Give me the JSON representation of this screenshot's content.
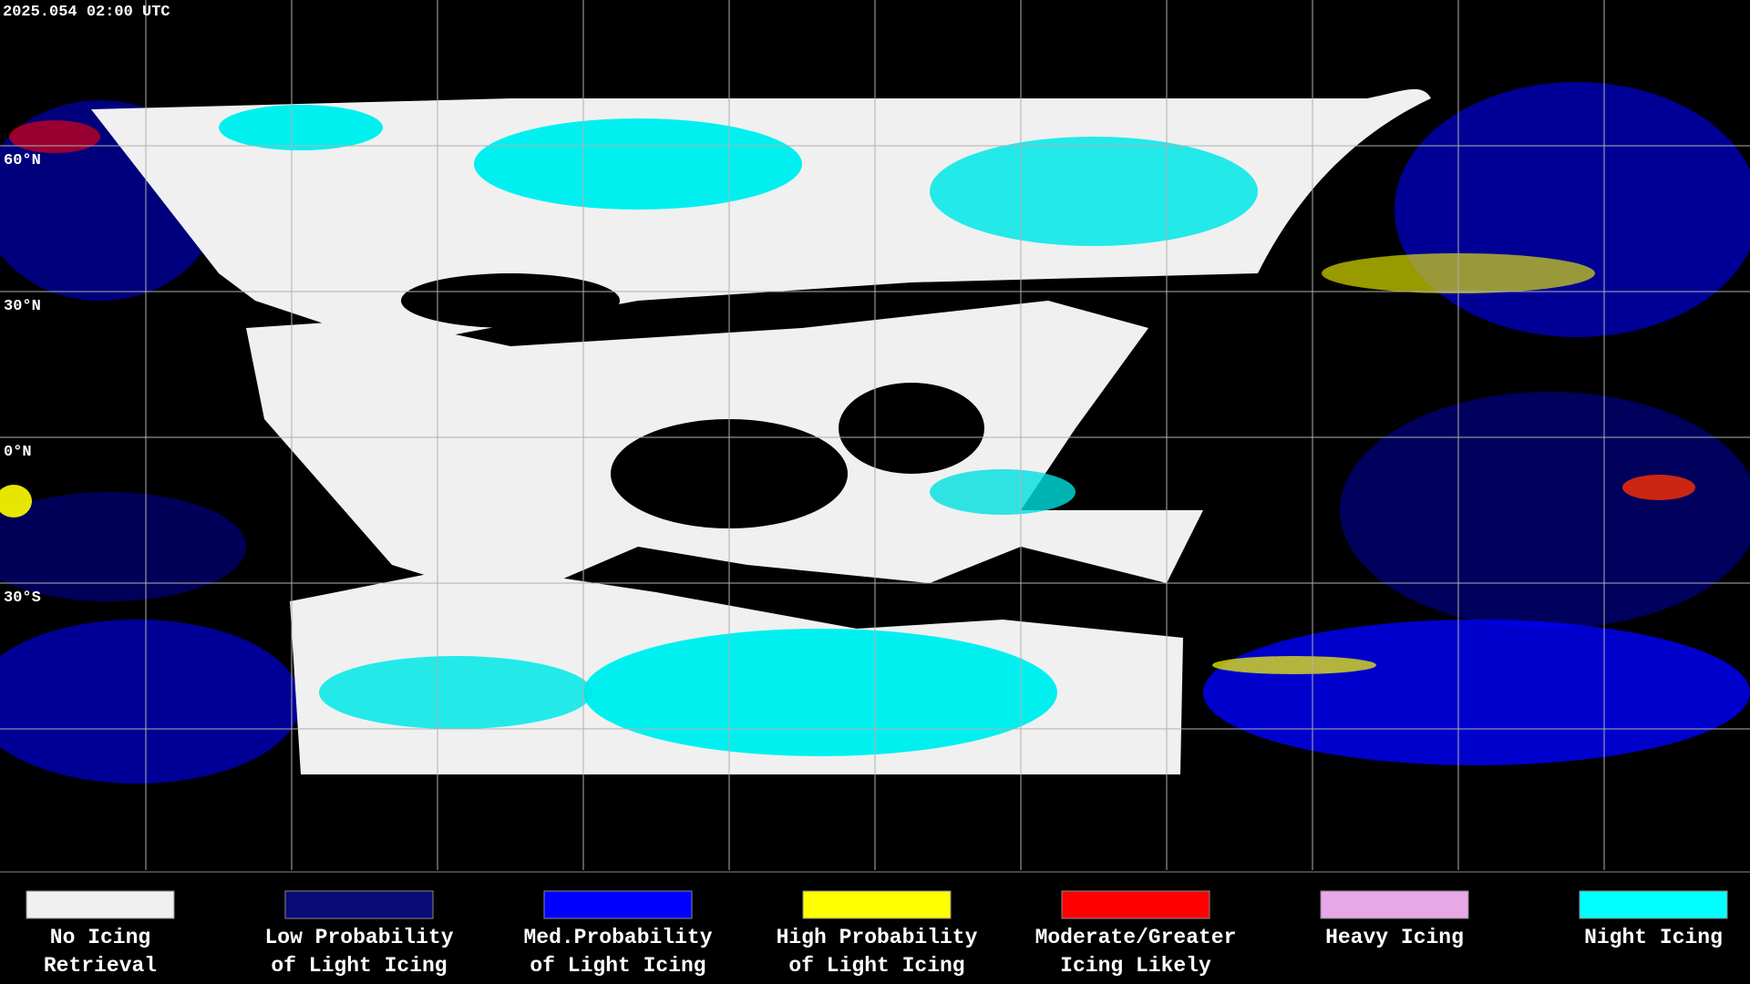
{
  "header": {
    "timestamp": "2025.054 02:00 UTC"
  },
  "map": {
    "latitude_labels": [
      "60°N",
      "30°N",
      "0°N",
      "30°S"
    ]
  },
  "legend": [
    {
      "color": "#f0f0f0",
      "label_lines": [
        "No Icing",
        "Retrieval"
      ]
    },
    {
      "color": "#0a0a78",
      "label_lines": [
        "Low Probability",
        "of Light Icing"
      ]
    },
    {
      "color": "#0000ff",
      "label_lines": [
        "Med.Probability",
        "of Light Icing"
      ]
    },
    {
      "color": "#ffff00",
      "label_lines": [
        "High Probability",
        "of Light Icing"
      ]
    },
    {
      "color": "#ff0000",
      "label_lines": [
        "Moderate/Greater",
        "Icing Likely"
      ]
    },
    {
      "color": "#e8a8e8",
      "label_lines": [
        "Heavy Icing"
      ]
    },
    {
      "color": "#00ffff",
      "label_lines": [
        "Night Icing"
      ]
    }
  ]
}
